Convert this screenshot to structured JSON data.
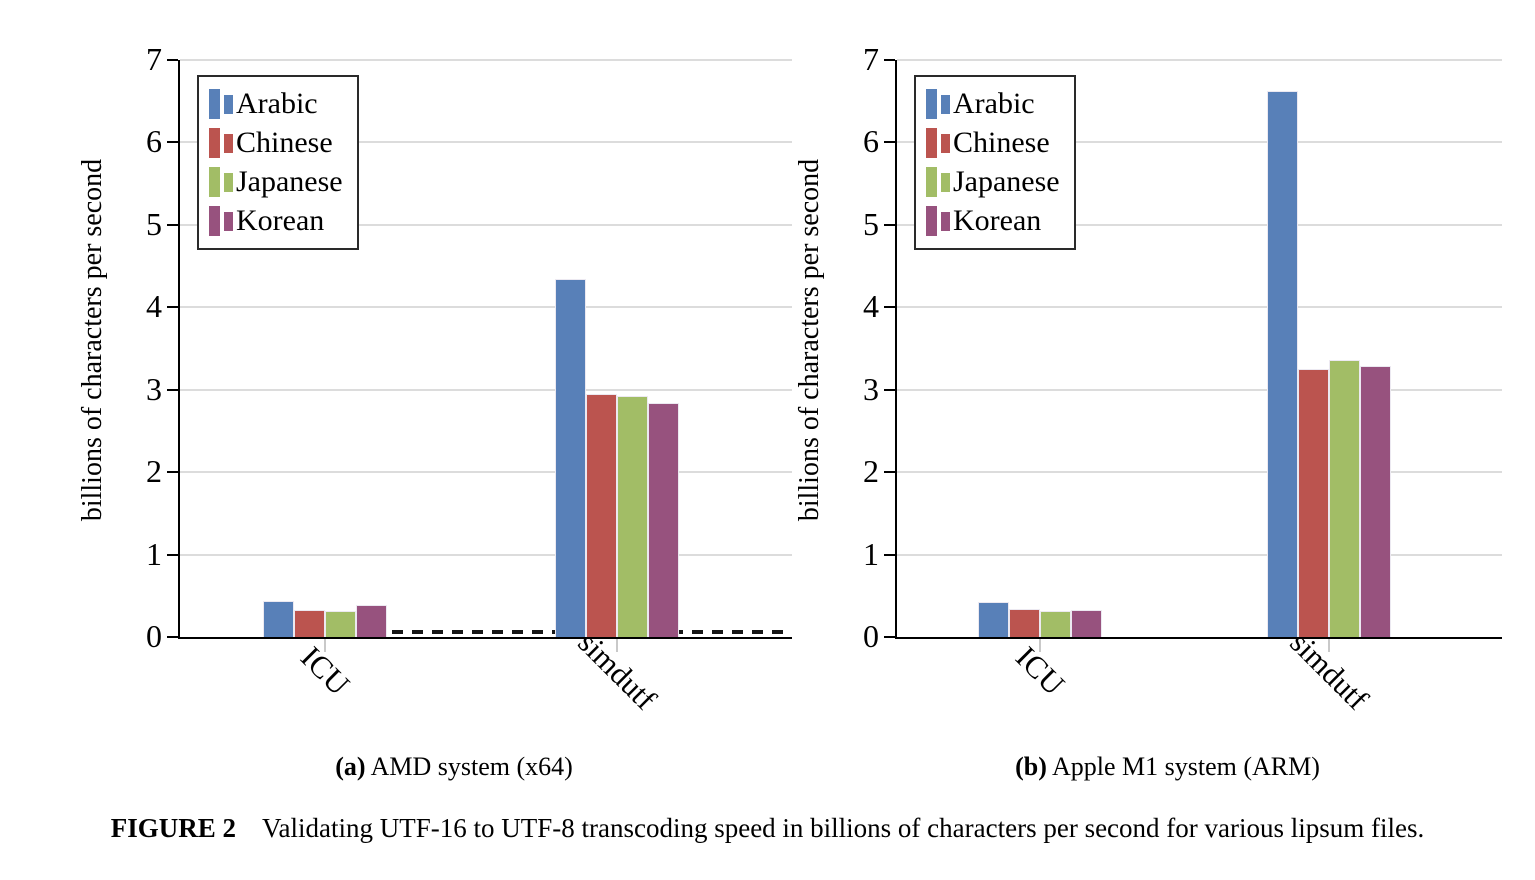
{
  "figure": {
    "caption_label": "FIGURE 2",
    "caption_text": "Validating UTF-16 to UTF-8 transcoding speed in billions of characters per second for various lipsum files."
  },
  "colors": {
    "arabic_blue": "#5880b8",
    "chinese_red": "#bb544f",
    "japanese_green": "#a2bd66",
    "korean_purple": "#97527e",
    "gridline_gray": "#dcdcdc",
    "axis_black": "#000000"
  },
  "chart_data": [
    {
      "type": "bar",
      "subcaption_label": "(a)",
      "subcaption_text": "AMD system (x64)",
      "ylabel": "billions of characters per second",
      "ylim": [
        0,
        7
      ],
      "yticks": [
        0,
        1,
        2,
        3,
        4,
        5,
        6,
        7
      ],
      "categories": [
        "ICU",
        "simdutf"
      ],
      "series": [
        {
          "name": "Arabic",
          "color": "#5880b8",
          "values": [
            0.44,
            4.34
          ]
        },
        {
          "name": "Chinese",
          "color": "#bb544f",
          "values": [
            0.33,
            2.95
          ]
        },
        {
          "name": "Japanese",
          "color": "#a2bd66",
          "values": [
            0.31,
            2.92
          ]
        },
        {
          "name": "Korean",
          "color": "#97527e",
          "values": [
            0.39,
            2.84
          ]
        }
      ],
      "legend_position": "top-left",
      "grid": "horizontal",
      "baseline_dashed_line": true
    },
    {
      "type": "bar",
      "subcaption_label": "(b)",
      "subcaption_text": "Apple M1 system (ARM)",
      "ylabel": "billions of characters per second",
      "ylim": [
        0,
        7
      ],
      "yticks": [
        0,
        1,
        2,
        3,
        4,
        5,
        6,
        7
      ],
      "categories": [
        "ICU",
        "simdutf"
      ],
      "series": [
        {
          "name": "Arabic",
          "color": "#5880b8",
          "values": [
            0.42,
            6.63
          ]
        },
        {
          "name": "Chinese",
          "color": "#bb544f",
          "values": [
            0.34,
            3.25
          ]
        },
        {
          "name": "Japanese",
          "color": "#a2bd66",
          "values": [
            0.31,
            3.36
          ]
        },
        {
          "name": "Korean",
          "color": "#97527e",
          "values": [
            0.33,
            3.29
          ]
        }
      ],
      "legend_position": "top-left",
      "grid": "horizontal",
      "baseline_dashed_line": false
    }
  ]
}
